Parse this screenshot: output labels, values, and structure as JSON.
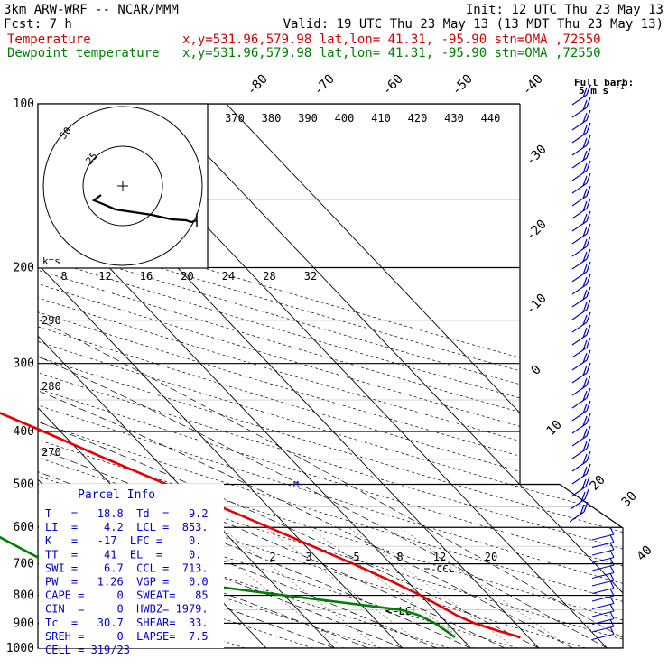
{
  "header": {
    "model": "3km ARW-WRF -- NCAR/MMM",
    "init": "Init: 12 UTC Thu 23 May 13",
    "fcst": "Fcst:    7 h",
    "valid": "Valid: 19 UTC Thu 23 May 13 (13 MDT Thu 23 May 13)",
    "temp_label": "Temperature",
    "temp_info": "x,y=531.96,579.98   lat,lon= 41.31, -95.90  stn=OMA ,72550",
    "dew_label": "Dewpoint temperature",
    "dew_info": "x,y=531.96,579.98   lat,lon= 41.31, -95.90  stn=OMA ,72550"
  },
  "barb_legend": {
    "title": "Full barb:",
    "value": "5 m s",
    "exp": "-1"
  },
  "hodograph": {
    "units": "kts",
    "ring_labels": [
      "25",
      "50"
    ]
  },
  "skewt": {
    "pressure_labels": [
      "100",
      "200",
      "300",
      "400",
      "500",
      "600",
      "700",
      "800",
      "900",
      "1000"
    ],
    "isotherm_labels": [
      "-80",
      "-70",
      "-60",
      "-50",
      "-40",
      "-30",
      "-20",
      "-10",
      "0",
      "10",
      "20",
      "30",
      "40"
    ],
    "theta_labels": [
      "370",
      "380",
      "390",
      "400",
      "410",
      "420",
      "430",
      "440"
    ],
    "dryadiabat_low_labels": [
      "290",
      "280",
      "270"
    ],
    "mixing_top_labels": [
      "8",
      "12",
      "16",
      "20",
      "24",
      "28",
      "32"
    ],
    "mixing_low_labels": [
      "2",
      "3",
      "5",
      "8",
      "12",
      "20"
    ],
    "ccl_label": "-CCL",
    "lcl_label": "<-LCL"
  },
  "parcel": {
    "title": "Parcel Info",
    "rows": [
      "T   =   18.8  Td  =   9.2",
      "LI  =    4.2  LCL =  853.",
      "K   =   -17  LFC =    0.",
      "TT  =    41  EL  =    0.",
      "SWI =    6.7  CCL =  713.",
      "PW  =   1.26  VGP =   0.0",
      "CAPE =     0  SWEAT=   85",
      "CIN  =     0  HWBZ= 1979.",
      "Tc  =   30.7  SHEAR=  33.",
      "SREH =     0  LAPSE=  7.5",
      "CELL = 319/23"
    ]
  },
  "chart_data": {
    "type": "line",
    "title": "",
    "xlabel": "",
    "ylabel": "",
    "y_axis": "pressure (hPa, log scale)",
    "ylim": [
      1000,
      100
    ],
    "series": [
      {
        "name": "Temperature",
        "color": "#e80000",
        "pressure": [
          955,
          930,
          900,
          870,
          850,
          800,
          750,
          700,
          650,
          600,
          550,
          500,
          450,
          400,
          350,
          300,
          250,
          220,
          200,
          180,
          150,
          130,
          110,
          100
        ],
        "temperature": [
          18.8,
          16.5,
          14.0,
          12.5,
          11.8,
          10.0,
          7.5,
          4.5,
          1.0,
          -2.8,
          -7.0,
          -11.8,
          -17.0,
          -22.5,
          -29.0,
          -37.0,
          -46.5,
          -52.5,
          -56.0,
          -58.5,
          -63.0,
          -65.5,
          -69.0,
          -72.0
        ]
      },
      {
        "name": "Dewpoint temperature",
        "color": "#008000",
        "pressure": [
          955,
          930,
          900,
          870,
          850,
          800,
          750,
          700,
          600,
          500,
          450,
          400,
          350,
          300,
          250,
          220,
          200,
          180,
          150,
          130,
          110,
          100
        ],
        "dewpoint": [
          9.2,
          8.8,
          8.2,
          7.0,
          5.0,
          -10.0,
          -25.0,
          -40.0,
          -45.0,
          -46.0,
          -39.0,
          -33.0,
          -43.0,
          -53.0,
          -63.0,
          -69.0,
          -73.0,
          -74.0,
          -77.0,
          -81.0,
          -82.0,
          -84.0
        ]
      }
    ]
  },
  "colors": {
    "temperature": "#e80000",
    "dewpoint": "#008000",
    "barbs": "#0000cc",
    "grid_line": "#000000"
  }
}
